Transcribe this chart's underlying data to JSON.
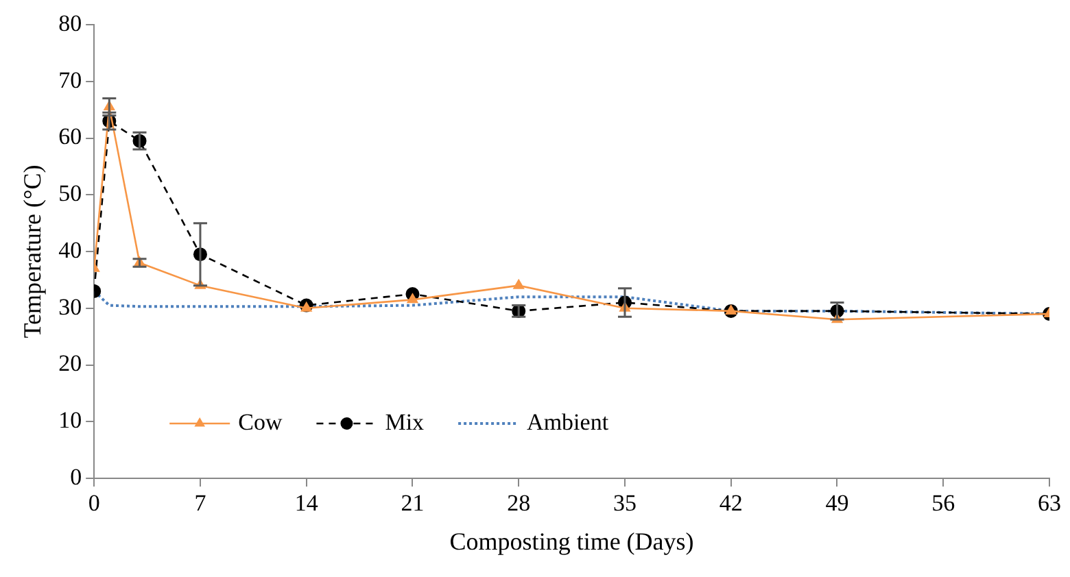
{
  "chart_data": {
    "type": "line",
    "xlabel": "Composting time (Days)",
    "ylabel": "Temperature (°C)",
    "x": [
      0,
      1,
      3,
      7,
      14,
      21,
      28,
      35,
      42,
      49,
      63
    ],
    "series": [
      {
        "name": "Cow",
        "color": "#f79646",
        "marker": "triangle",
        "line_style": "solid",
        "values": [
          37,
          65.5,
          38,
          34,
          30,
          31.5,
          34,
          30,
          29.5,
          28,
          29
        ],
        "errors": [
          null,
          1.5,
          0.7,
          null,
          null,
          null,
          null,
          null,
          null,
          null,
          null
        ]
      },
      {
        "name": "Mix",
        "color": "#000000",
        "marker": "circle",
        "line_style": "dashed",
        "values": [
          33,
          63,
          59.5,
          39.5,
          30.5,
          32.5,
          29.5,
          31,
          29.5,
          29.5,
          29
        ],
        "errors": [
          null,
          1.5,
          1.5,
          5.5,
          null,
          null,
          1,
          2.5,
          null,
          1.5,
          null
        ]
      },
      {
        "name": "Ambient",
        "color": "#4f81bd",
        "marker": "none",
        "line_style": "dotted",
        "values": [
          33,
          30.5,
          30.3,
          30.3,
          30.3,
          30.5,
          32,
          32,
          29.5,
          29.5,
          29
        ]
      }
    ],
    "xlim": [
      0,
      63
    ],
    "xticks": [
      0,
      7,
      14,
      21,
      28,
      35,
      42,
      49,
      56,
      63
    ],
    "ylim": [
      0,
      80
    ],
    "yticks": [
      0,
      10,
      20,
      30,
      40,
      50,
      60,
      70,
      80
    ],
    "grid": false,
    "legend": "bottom left"
  }
}
